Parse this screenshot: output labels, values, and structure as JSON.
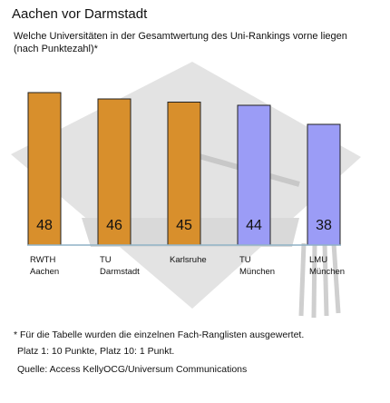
{
  "title": "Aachen vor Darmstadt",
  "subtitle": "Welche Universitäten in der Gesamtwertung des Uni-Rankings vorne liegen (nach Punktezahl)*",
  "chart_data": {
    "type": "bar",
    "categories": [
      [
        "RWTH",
        "Aachen"
      ],
      [
        "TU",
        "Darmstadt"
      ],
      [
        "Karlsruhe"
      ],
      [
        "TU",
        "München"
      ],
      [
        "LMU",
        "München"
      ]
    ],
    "values": [
      48,
      46,
      45,
      44,
      38
    ],
    "bar_colors": [
      "#d88f2c",
      "#d88f2c",
      "#d88f2c",
      "#9b9cf6",
      "#9b9cf6"
    ],
    "ylim": [
      0,
      48
    ],
    "grid": false
  },
  "footnotes": [
    "* Für die Tabelle wurden die einzelnen Fach-Ranglisten ausgewertet.",
    "Platz 1: 10 Punkte, Platz 10: 1 Punkt.",
    "Quelle: Access KellyOCG/Universum Communications"
  ],
  "colors": {
    "orange": "#d88f2c",
    "violet": "#9b9cf6",
    "decor_gray": "#e3e3e3",
    "baseline": "#8fb2c6"
  }
}
